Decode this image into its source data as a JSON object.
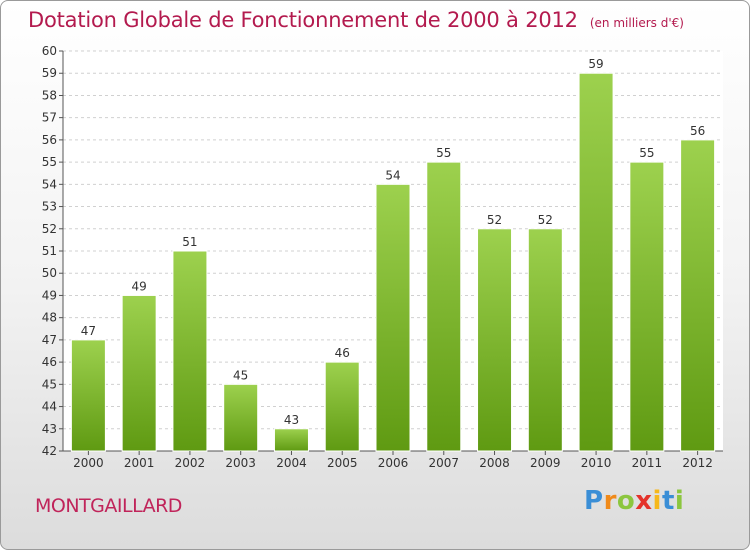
{
  "title": "Dotation Globale de Fonctionnement de 2000 à 2012",
  "unit": "(en milliers d'€)",
  "commune": "MONTGAILLARD",
  "brand": {
    "letters": [
      "P",
      "r",
      "o",
      "x",
      "i",
      "t",
      "i"
    ],
    "colors": [
      "#3a8ed6",
      "#f08a1a",
      "#8cc63f",
      "#e4332b",
      "#f6b81c",
      "#3a8ed6",
      "#8cc63f"
    ]
  },
  "colors": {
    "title": "#b31a4e",
    "bar_light": "#9dd14e",
    "bar_dark": "#5f9a12",
    "grid": "#d0d0d0"
  },
  "chart_data": {
    "type": "bar",
    "title": "Dotation Globale de Fonctionnement de 2000 à 2012",
    "subtitle": "(en milliers d'€)",
    "categories": [
      "2000",
      "2001",
      "2002",
      "2003",
      "2004",
      "2005",
      "2006",
      "2007",
      "2008",
      "2009",
      "2010",
      "2011",
      "2012"
    ],
    "values": [
      47,
      49,
      51,
      45,
      43,
      46,
      54,
      55,
      52,
      52,
      59,
      55,
      56
    ],
    "data_labels": [
      "47",
      "49",
      "51",
      "45",
      "43",
      "46",
      "54",
      "55",
      "52",
      "52",
      "59",
      "55",
      "56"
    ],
    "ylim": [
      42,
      60
    ],
    "yticks": [
      "42",
      "43",
      "44",
      "45",
      "46",
      "47",
      "48",
      "49",
      "50",
      "51",
      "52",
      "53",
      "54",
      "55",
      "56",
      "57",
      "58",
      "59",
      "60"
    ],
    "grid": true,
    "legend": "none"
  }
}
